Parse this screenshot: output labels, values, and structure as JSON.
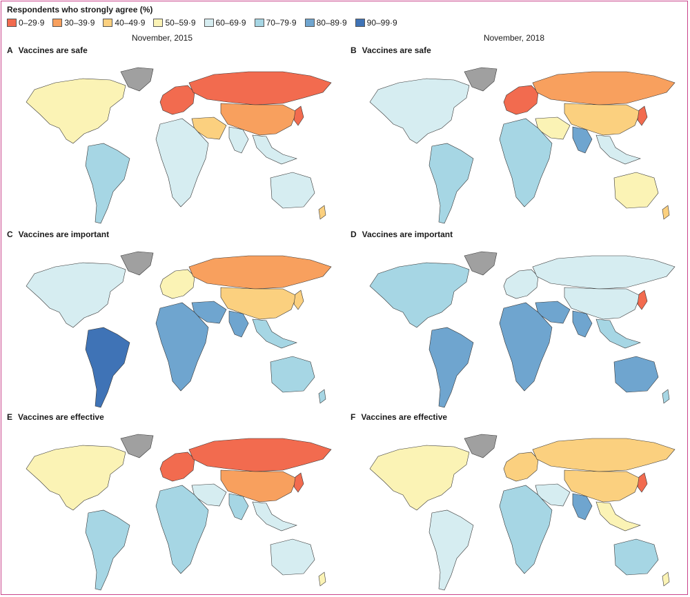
{
  "legend": {
    "title": "Respondents who strongly agree (%)",
    "items": [
      {
        "label": "0–29·9",
        "color": "#f26b4f"
      },
      {
        "label": "30–39·9",
        "color": "#f8a05e"
      },
      {
        "label": "40–49·9",
        "color": "#fbd07f"
      },
      {
        "label": "50–59·9",
        "color": "#fbf3b5"
      },
      {
        "label": "60–69·9",
        "color": "#d6edf1"
      },
      {
        "label": "70–79·9",
        "color": "#a6d6e4"
      },
      {
        "label": "80–89·9",
        "color": "#6fa5cf"
      },
      {
        "label": "90–99·9",
        "color": "#3f73b6"
      }
    ],
    "no_data_color": "#a0a0a0"
  },
  "columns": [
    "November, 2015",
    "November, 2018"
  ],
  "panels": [
    {
      "letter": "A",
      "title": "Vaccines are safe",
      "fills": {
        "na": 3,
        "greenland": "nd",
        "sa": 5,
        "eu": 0,
        "russia": 0,
        "asia": 1,
        "me": 2,
        "africa": 4,
        "india": 4,
        "sea": 4,
        "aus": 4,
        "nz": 2,
        "japan": 0
      }
    },
    {
      "letter": "B",
      "title": "Vaccines are safe",
      "fills": {
        "na": 4,
        "greenland": "nd",
        "sa": 5,
        "eu": 0,
        "russia": 1,
        "asia": 2,
        "me": 3,
        "africa": 5,
        "india": 6,
        "sea": 4,
        "aus": 3,
        "nz": 2,
        "japan": 0
      }
    },
    {
      "letter": "C",
      "title": "Vaccines are important",
      "fills": {
        "na": 4,
        "greenland": "nd",
        "sa": 7,
        "eu": 3,
        "russia": 1,
        "asia": 2,
        "me": 6,
        "africa": 6,
        "india": 6,
        "sea": 5,
        "aus": 5,
        "nz": 5,
        "japan": 2
      }
    },
    {
      "letter": "D",
      "title": "Vaccines are important",
      "fills": {
        "na": 5,
        "greenland": "nd",
        "sa": 6,
        "eu": 4,
        "russia": 4,
        "asia": 4,
        "me": 6,
        "africa": 6,
        "india": 6,
        "sea": 5,
        "aus": 6,
        "nz": 5,
        "japan": 0
      }
    },
    {
      "letter": "E",
      "title": "Vaccines are effective",
      "fills": {
        "na": 3,
        "greenland": "nd",
        "sa": 5,
        "eu": 0,
        "russia": 0,
        "asia": 1,
        "me": 4,
        "africa": 5,
        "india": 5,
        "sea": 4,
        "aus": 4,
        "nz": 3,
        "japan": 0
      }
    },
    {
      "letter": "F",
      "title": "Vaccines are effective",
      "fills": {
        "na": 3,
        "greenland": "nd",
        "sa": 4,
        "eu": 2,
        "russia": 2,
        "asia": 2,
        "me": 4,
        "africa": 5,
        "india": 6,
        "sea": 3,
        "aus": 5,
        "nz": 3,
        "japan": 0
      }
    }
  ]
}
